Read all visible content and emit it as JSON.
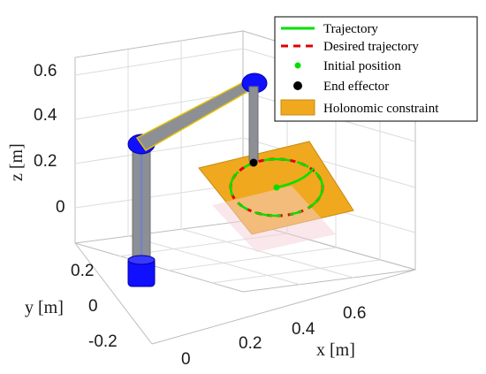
{
  "chart_data": {
    "type": "3d-trajectory",
    "xlabel": "x [m]",
    "ylabel": "y [m]",
    "zlabel": "z [m]",
    "x_ticks": [
      "0",
      "0.2",
      "0.4",
      "0.6"
    ],
    "y_ticks": [
      "-0.2",
      "0",
      "0.2"
    ],
    "z_ticks": [
      "0",
      "0.2",
      "0.4",
      "0.6"
    ],
    "grid": true,
    "legend_position": "top-right",
    "legend": [
      {
        "label": "Trajectory",
        "marker": "line",
        "color": "#00e000"
      },
      {
        "label": "Desired trajectory",
        "marker": "dashed-line",
        "color": "#e00000"
      },
      {
        "label": "Initial position",
        "marker": "dot",
        "color": "#00e000"
      },
      {
        "label": "End effector",
        "marker": "dot",
        "color": "#000000"
      },
      {
        "label": "Holonomic constraint",
        "marker": "patch",
        "color": "#f0a81e"
      }
    ],
    "trajectory": {
      "shape": "circle",
      "center": [
        0.4,
        0.0,
        0.0
      ],
      "radius": 0.1,
      "desired_trajectory": "circle of the same center and radius"
    },
    "colors": {
      "trajectory": "#00e000",
      "desired": "#e00000",
      "constraint": "#f0a81e",
      "joint": "#1010ff",
      "link": "#8c8c8c"
    }
  }
}
